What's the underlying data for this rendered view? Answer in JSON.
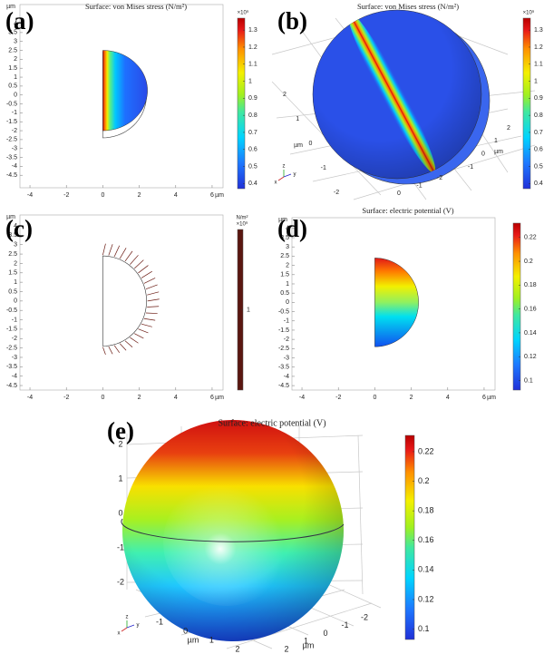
{
  "chart_data": [
    {
      "type": "stress2d",
      "panel_label": "(a)",
      "title": "Surface: von Mises stress (N/m²)",
      "x_unit": "µm",
      "y_unit": "µm",
      "xlim": [
        -4.55,
        6.6
      ],
      "xticks": [
        -4,
        -2,
        0,
        2,
        4,
        6
      ],
      "ylim": [
        -5.2,
        5.07
      ],
      "yticks": [
        -4.5,
        -4,
        -3.5,
        -3,
        -2.5,
        -2,
        -1.5,
        -1,
        -0.5,
        0,
        0.5,
        1,
        1.5,
        2,
        2.5,
        3,
        3.5,
        4
      ],
      "colorbar": {
        "multiplier": "×10⁹",
        "clim": [
          0.37,
          1.37
        ],
        "ticks": [
          0.4,
          0.5,
          0.6,
          0.7,
          0.8,
          0.9,
          1,
          1.1,
          1.2,
          1.3
        ]
      }
    },
    {
      "type": "stress3d",
      "panel_label": "(b)",
      "title": "Surface: von Mises stress (N/m²)",
      "axes3d": [
        {
          "ticks": [
            2,
            1,
            0,
            -1,
            -2
          ],
          "unit": "µm"
        },
        {
          "ticks": [
            0,
            -1,
            -2
          ]
        },
        {
          "ticks": [
            2,
            1,
            0,
            -1
          ],
          "unit": "µm"
        }
      ],
      "triad_labels": [
        "z",
        "y",
        "x"
      ],
      "colorbar": {
        "multiplier": "×10⁹",
        "clim": [
          0.37,
          1.37
        ],
        "ticks": [
          0.4,
          0.5,
          0.6,
          0.7,
          0.8,
          0.9,
          1,
          1.1,
          1.2,
          1.3
        ]
      }
    },
    {
      "type": "load2d",
      "panel_label": "(c)",
      "x_unit": "µm",
      "y_unit": "µm",
      "xlim": [
        -4.55,
        6.6
      ],
      "xticks": [
        -4,
        -2,
        0,
        2,
        4,
        6
      ],
      "ylim": [
        -4.74,
        4.58
      ],
      "yticks": [
        -4.5,
        -4,
        -3.5,
        -3,
        -2.5,
        -2,
        -1.5,
        -1,
        -0.5,
        0,
        0.5,
        1,
        1.5,
        2,
        2.5,
        3,
        3.5,
        4
      ],
      "colorbar": {
        "unit": "N/m²",
        "multiplier": "×10⁹",
        "clim": [
          0,
          2
        ],
        "ticks": [
          1
        ],
        "color": "#5a1610"
      }
    },
    {
      "type": "potential2d",
      "panel_label": "(d)",
      "title": "Surface: electric potential (V)",
      "x_unit": "µm",
      "y_unit": "µm",
      "xlim": [
        -4.55,
        6.6
      ],
      "xticks": [
        -4,
        -2,
        0,
        2,
        4,
        6
      ],
      "ylim": [
        -4.74,
        4.58
      ],
      "yticks": [
        -4.5,
        -4,
        -3.5,
        -3,
        -2.5,
        -2,
        -1.5,
        -1,
        -0.5,
        0,
        0.5,
        1,
        1.5,
        2,
        2.5,
        3,
        3.5,
        4
      ],
      "colorbar": {
        "clim": [
          0.092,
          0.232
        ],
        "ticks": [
          0.1,
          0.12,
          0.14,
          0.16,
          0.18,
          0.2,
          0.22
        ]
      }
    },
    {
      "type": "potential3d",
      "panel_label": "(e)",
      "title": "Surface: electric potential (V)",
      "axes3d": [
        {
          "ticks": [
            2,
            1,
            0,
            -1,
            -2
          ]
        },
        {
          "ticks": [
            -1,
            0,
            1,
            2
          ],
          "unit": "µm"
        },
        {
          "ticks": [
            -2,
            -1,
            0,
            1,
            2
          ],
          "unit": "µm"
        }
      ],
      "triad_labels": [
        "z",
        "y",
        "x"
      ],
      "colorbar": {
        "clim": [
          0.093,
          0.231
        ],
        "ticks": [
          0.1,
          0.12,
          0.14,
          0.16,
          0.18,
          0.2,
          0.22
        ]
      }
    }
  ]
}
